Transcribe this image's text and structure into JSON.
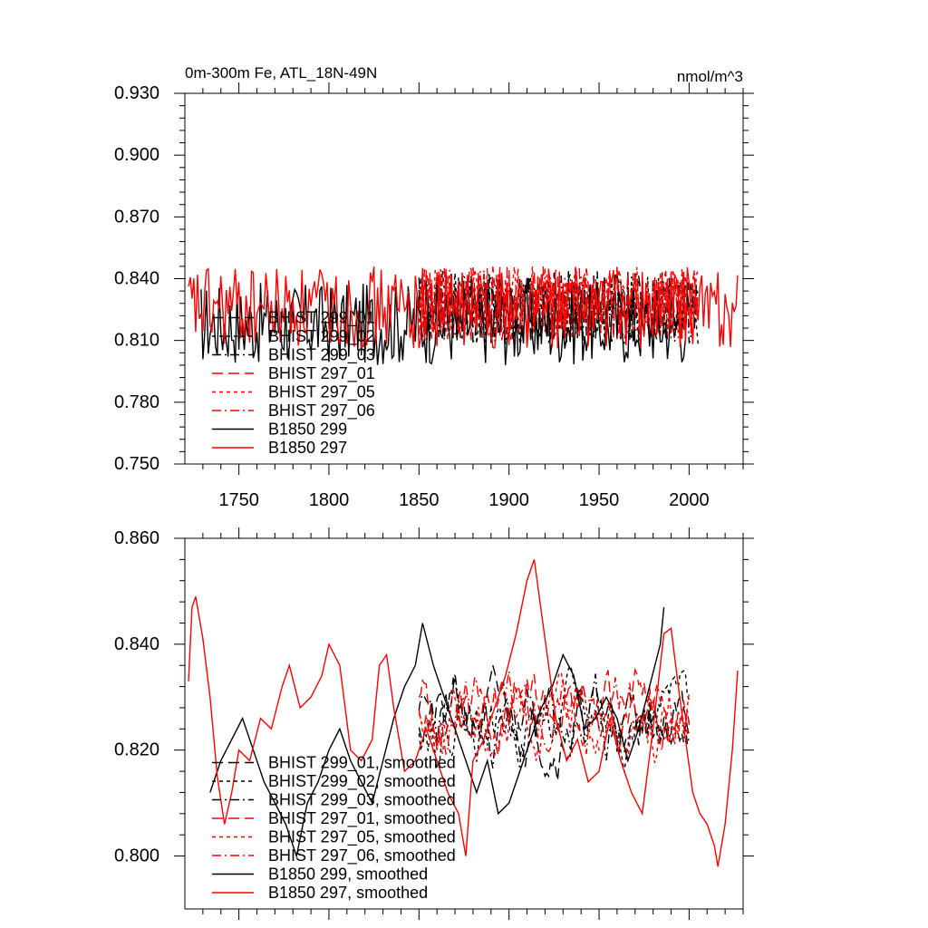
{
  "chart_data": [
    {
      "type": "line",
      "title": "0m-300m Fe, ATL_18N-49N",
      "units": "nmol/m^3",
      "xlim": [
        1720,
        2030
      ],
      "ylim": [
        0.75,
        0.93
      ],
      "xticks": [
        1750,
        1800,
        1850,
        1900,
        1950,
        2000
      ],
      "xtick_labels": [
        "1750",
        "1800",
        "1850",
        "1900",
        "1950",
        "2000"
      ],
      "yticks": [
        0.75,
        0.78,
        0.81,
        0.84,
        0.87,
        0.9,
        0.93
      ],
      "ytick_labels": [
        "0.750",
        "0.780",
        "0.810",
        "0.840",
        "0.870",
        "0.900",
        "0.930"
      ],
      "legend_position": "lower-left",
      "series": [
        {
          "name": "BHIST 299_01",
          "color": "#000000",
          "dash": "long",
          "x_range": [
            1850,
            2005
          ],
          "mean": 0.826,
          "noise": 0.018,
          "seed": 11
        },
        {
          "name": "BHIST 299_02",
          "color": "#000000",
          "dash": "short",
          "x_range": [
            1850,
            2005
          ],
          "mean": 0.826,
          "noise": 0.018,
          "seed": 12
        },
        {
          "name": "BHIST 299_03",
          "color": "#000000",
          "dash": "dashdot",
          "x_range": [
            1850,
            2005
          ],
          "mean": 0.826,
          "noise": 0.018,
          "seed": 13
        },
        {
          "name": "BHIST 297_01",
          "color": "#ff0000",
          "dash": "long",
          "x_range": [
            1850,
            2005
          ],
          "mean": 0.828,
          "noise": 0.018,
          "seed": 14
        },
        {
          "name": "BHIST 297_05",
          "color": "#ff0000",
          "dash": "short",
          "x_range": [
            1850,
            2005
          ],
          "mean": 0.828,
          "noise": 0.018,
          "seed": 15
        },
        {
          "name": "BHIST 297_06",
          "color": "#ff0000",
          "dash": "dashdot",
          "x_range": [
            1850,
            2005
          ],
          "mean": 0.828,
          "noise": 0.018,
          "seed": 16
        },
        {
          "name": "B1850 299",
          "color": "#000000",
          "dash": "solid",
          "x_range": [
            1729,
            2000
          ],
          "mean": 0.818,
          "noise": 0.02,
          "seed": 17
        },
        {
          "name": "B1850 297",
          "color": "#ff0000",
          "dash": "solid",
          "x_range": [
            1722,
            2027
          ],
          "mean": 0.826,
          "noise": 0.02,
          "seed": 18
        }
      ]
    },
    {
      "type": "line",
      "xlim": [
        1720,
        2030
      ],
      "ylim": [
        0.79,
        0.86
      ],
      "xticks": [
        1750,
        1800,
        1850,
        1900,
        1950,
        2000
      ],
      "yticks": [
        0.8,
        0.82,
        0.84,
        0.86
      ],
      "ytick_labels": [
        "0.800",
        "0.820",
        "0.840",
        "0.860"
      ],
      "legend_position": "lower-left",
      "series": [
        {
          "name": "BHIST 299_01, smoothed",
          "color": "#000000",
          "dash": "long",
          "x_range": [
            1850,
            2000
          ],
          "mean": 0.826,
          "noise": 0.008,
          "seed": 21
        },
        {
          "name": "BHIST 299_02, smoothed",
          "color": "#000000",
          "dash": "short",
          "x_range": [
            1850,
            2000
          ],
          "mean": 0.826,
          "noise": 0.008,
          "seed": 22
        },
        {
          "name": "BHIST 299_03, smoothed",
          "color": "#000000",
          "dash": "dashdot",
          "x_range": [
            1850,
            2000
          ],
          "mean": 0.824,
          "noise": 0.009,
          "seed": 23
        },
        {
          "name": "BHIST 297_01, smoothed",
          "color": "#ff0000",
          "dash": "long",
          "x_range": [
            1850,
            2000
          ],
          "mean": 0.828,
          "noise": 0.008,
          "seed": 24
        },
        {
          "name": "BHIST 297_05, smoothed",
          "color": "#ff0000",
          "dash": "short",
          "x_range": [
            1850,
            2000
          ],
          "mean": 0.826,
          "noise": 0.008,
          "seed": 25
        },
        {
          "name": "BHIST 297_06, smoothed",
          "color": "#ff0000",
          "dash": "dashdot",
          "x_range": [
            1850,
            2000
          ],
          "mean": 0.828,
          "noise": 0.008,
          "seed": 26
        },
        {
          "name": "B1850 299, smoothed",
          "color": "#000000",
          "dash": "solid",
          "points": [
            [
              1734,
              0.812
            ],
            [
              1740,
              0.818
            ],
            [
              1746,
              0.822
            ],
            [
              1752,
              0.826
            ],
            [
              1758,
              0.82
            ],
            [
              1764,
              0.814
            ],
            [
              1770,
              0.81
            ],
            [
              1776,
              0.806
            ],
            [
              1782,
              0.8
            ],
            [
              1788,
              0.81
            ],
            [
              1794,
              0.814
            ],
            [
              1800,
              0.82
            ],
            [
              1806,
              0.824
            ],
            [
              1812,
              0.818
            ],
            [
              1818,
              0.814
            ],
            [
              1824,
              0.81
            ],
            [
              1830,
              0.818
            ],
            [
              1836,
              0.826
            ],
            [
              1842,
              0.832
            ],
            [
              1848,
              0.836
            ],
            [
              1852,
              0.844
            ],
            [
              1858,
              0.836
            ],
            [
              1864,
              0.83
            ],
            [
              1870,
              0.824
            ],
            [
              1876,
              0.818
            ],
            [
              1882,
              0.812
            ],
            [
              1888,
              0.818
            ],
            [
              1894,
              0.808
            ],
            [
              1900,
              0.81
            ],
            [
              1906,
              0.816
            ],
            [
              1912,
              0.822
            ],
            [
              1918,
              0.828
            ],
            [
              1924,
              0.832
            ],
            [
              1930,
              0.838
            ],
            [
              1936,
              0.834
            ],
            [
              1942,
              0.824
            ],
            [
              1948,
              0.826
            ],
            [
              1954,
              0.83
            ],
            [
              1960,
              0.826
            ],
            [
              1966,
              0.818
            ],
            [
              1972,
              0.824
            ],
            [
              1978,
              0.832
            ],
            [
              1984,
              0.84
            ],
            [
              1986,
              0.847
            ]
          ]
        },
        {
          "name": "B1850 297, smoothed",
          "color": "#ff0000",
          "dash": "solid",
          "points": [
            [
              1722,
              0.833
            ],
            [
              1724,
              0.847
            ],
            [
              1726,
              0.849
            ],
            [
              1730,
              0.841
            ],
            [
              1734,
              0.83
            ],
            [
              1738,
              0.815
            ],
            [
              1742,
              0.806
            ],
            [
              1746,
              0.812
            ],
            [
              1750,
              0.82
            ],
            [
              1756,
              0.818
            ],
            [
              1762,
              0.826
            ],
            [
              1768,
              0.824
            ],
            [
              1774,
              0.832
            ],
            [
              1778,
              0.836
            ],
            [
              1784,
              0.828
            ],
            [
              1790,
              0.83
            ],
            [
              1796,
              0.834
            ],
            [
              1800,
              0.84
            ],
            [
              1806,
              0.836
            ],
            [
              1812,
              0.82
            ],
            [
              1818,
              0.818
            ],
            [
              1824,
              0.822
            ],
            [
              1828,
              0.836
            ],
            [
              1832,
              0.838
            ],
            [
              1836,
              0.828
            ],
            [
              1842,
              0.816
            ],
            [
              1848,
              0.818
            ],
            [
              1854,
              0.824
            ],
            [
              1860,
              0.818
            ],
            [
              1866,
              0.812
            ],
            [
              1872,
              0.808
            ],
            [
              1876,
              0.8
            ],
            [
              1880,
              0.818
            ],
            [
              1886,
              0.822
            ],
            [
              1892,
              0.828
            ],
            [
              1898,
              0.834
            ],
            [
              1904,
              0.842
            ],
            [
              1910,
              0.852
            ],
            [
              1914,
              0.856
            ],
            [
              1918,
              0.846
            ],
            [
              1922,
              0.836
            ],
            [
              1926,
              0.826
            ],
            [
              1932,
              0.818
            ],
            [
              1938,
              0.822
            ],
            [
              1944,
              0.814
            ],
            [
              1950,
              0.816
            ],
            [
              1956,
              0.826
            ],
            [
              1962,
              0.818
            ],
            [
              1968,
              0.812
            ],
            [
              1974,
              0.808
            ],
            [
              1980,
              0.824
            ],
            [
              1986,
              0.842
            ],
            [
              1990,
              0.843
            ],
            [
              1994,
              0.832
            ],
            [
              1998,
              0.822
            ],
            [
              2002,
              0.812
            ],
            [
              2006,
              0.808
            ],
            [
              2010,
              0.806
            ],
            [
              2014,
              0.802
            ],
            [
              2016,
              0.798
            ],
            [
              2020,
              0.806
            ],
            [
              2024,
              0.82
            ],
            [
              2027,
              0.835
            ]
          ]
        }
      ]
    }
  ]
}
